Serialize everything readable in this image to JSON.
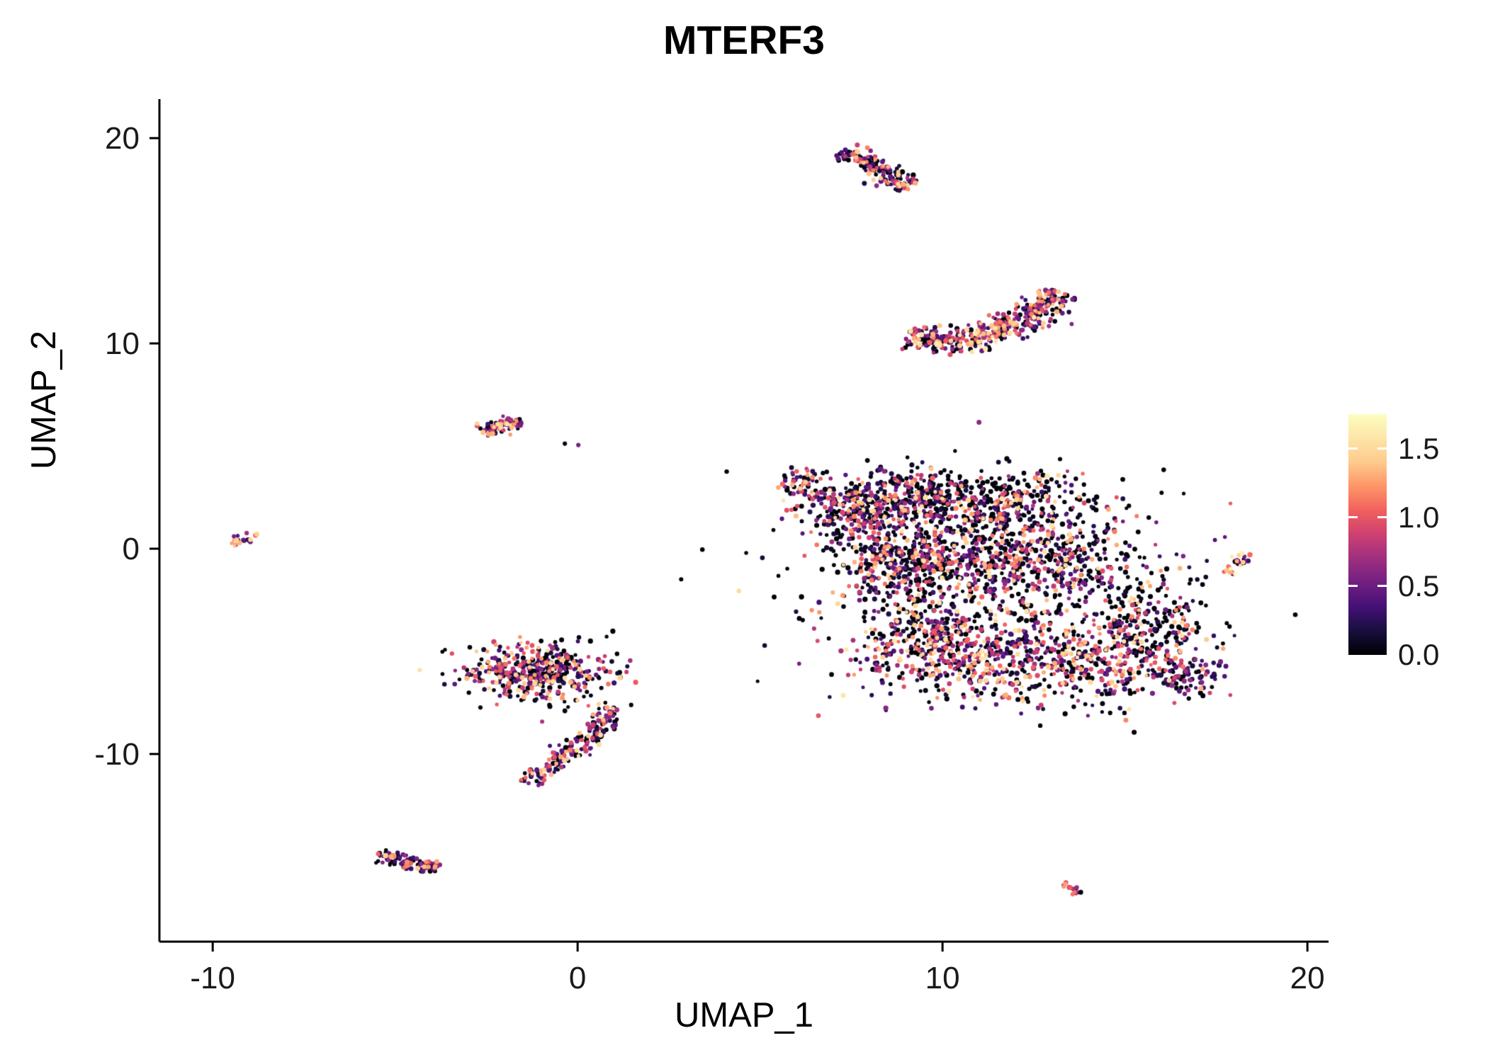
{
  "chart_data": {
    "type": "scatter",
    "title": "MTERF3",
    "xlabel": "UMAP_1",
    "ylabel": "UMAP_2",
    "xlim": [
      -11.46,
      20.58
    ],
    "ylim": [
      -19.14,
      21.9
    ],
    "x_ticks": [
      -10,
      0,
      10,
      20
    ],
    "y_ticks": [
      -10,
      0,
      10,
      20
    ],
    "grid": false,
    "background": "#ffffff",
    "axis_color": "#000000",
    "tick_text_color": "#1a1a1a",
    "legend": {
      "position": "right",
      "min": 0,
      "max": 1.75,
      "ticks": [
        0,
        0.5,
        1.0,
        1.5
      ],
      "tick_labels": [
        "0.0",
        "0.5",
        "1.0",
        "1.5"
      ]
    },
    "colormap": {
      "name": "magma",
      "stops": [
        [
          0.0,
          "#000004"
        ],
        [
          0.1,
          "#180f3e"
        ],
        [
          0.2,
          "#451077"
        ],
        [
          0.3,
          "#721f81"
        ],
        [
          0.4,
          "#9f2f7f"
        ],
        [
          0.5,
          "#cd4071"
        ],
        [
          0.6,
          "#f1605d"
        ],
        [
          0.7,
          "#fd9567"
        ],
        [
          0.8,
          "#feca8d"
        ],
        [
          0.9,
          "#fde5a7"
        ],
        [
          1.0,
          "#fcfdbf"
        ]
      ]
    },
    "clusters": [
      {
        "name": "top-strip",
        "shape": "strip",
        "seed": 11,
        "count": 150,
        "width": 0.21,
        "path": [
          [
            7.25,
            19.4
          ],
          [
            7.7,
            19.05
          ],
          [
            8.2,
            18.6
          ],
          [
            8.7,
            18.05
          ],
          [
            9.05,
            17.6
          ]
        ],
        "expr": {
          "p0": 0.32,
          "base": 0.1,
          "span": 1.35,
          "gamma": 1.6
        }
      },
      {
        "name": "top-strip-hot-tip",
        "shape": "strip",
        "seed": 12,
        "count": 12,
        "width": 0.1,
        "path": [
          [
            8.85,
            17.85
          ],
          [
            9.1,
            17.55
          ]
        ],
        "expr": {
          "p0": 0,
          "base": 0.9,
          "span": 0.8,
          "gamma": 1
        }
      },
      {
        "name": "upper-crescent",
        "shape": "strip",
        "seed": 13,
        "count": 430,
        "width": 0.3,
        "path": [
          [
            9.0,
            10.35
          ],
          [
            9.7,
            10.12
          ],
          [
            10.5,
            10.15
          ],
          [
            11.3,
            10.5
          ],
          [
            12.1,
            11.0
          ],
          [
            12.75,
            11.7
          ],
          [
            13.15,
            12.55
          ]
        ],
        "expr": {
          "p0": 0.25,
          "base": 0.18,
          "span": 1.45,
          "gamma": 1.25
        }
      },
      {
        "name": "left-small-strip",
        "shape": "strip",
        "seed": 14,
        "count": 75,
        "width": 0.15,
        "path": [
          [
            -2.62,
            5.72
          ],
          [
            -2.1,
            6.0
          ],
          [
            -1.55,
            6.18
          ]
        ],
        "expr": {
          "p0": 0.25,
          "base": 0.2,
          "span": 1.4,
          "gamma": 1.2
        }
      },
      {
        "name": "left-singles",
        "shape": "points",
        "seed": 15,
        "points": [
          [
            -0.35,
            5.12,
            0.05
          ],
          [
            0.02,
            5.05,
            0.55
          ]
        ]
      },
      {
        "name": "far-left-dot",
        "shape": "blob",
        "seed": 16,
        "count": 20,
        "center": [
          -9.15,
          0.45
        ],
        "sx": 0.2,
        "sy": 0.14,
        "rot": 25,
        "expr": {
          "p0": 0.25,
          "base": 0.3,
          "span": 1.3,
          "gamma": 1.1
        }
      },
      {
        "name": "mid-left-blob",
        "shape": "blob",
        "seed": 17,
        "count": 430,
        "center": [
          -1.05,
          -5.95
        ],
        "sx": 1.05,
        "sy": 0.72,
        "rot": 0,
        "expr": {
          "p0": 0.3,
          "base": 0.12,
          "span": 1.45,
          "gamma": 1.5
        }
      },
      {
        "name": "mid-left-tail",
        "shape": "strip",
        "seed": 18,
        "count": 170,
        "width": 0.22,
        "path": [
          [
            0.95,
            -7.7
          ],
          [
            0.45,
            -8.9
          ],
          [
            -0.3,
            -10.1
          ],
          [
            -1.1,
            -11.0
          ],
          [
            -1.55,
            -11.35
          ]
        ],
        "expr": {
          "p0": 0.28,
          "base": 0.15,
          "span": 1.4,
          "gamma": 1.4
        }
      },
      {
        "name": "right-small-strip",
        "shape": "strip",
        "seed": 19,
        "count": 30,
        "width": 0.11,
        "path": [
          [
            17.85,
            -1.2
          ],
          [
            18.1,
            -0.75
          ],
          [
            18.3,
            -0.2
          ]
        ],
        "expr": {
          "p0": 0.2,
          "base": 0.3,
          "span": 1.45,
          "gamma": 1.0
        }
      },
      {
        "name": "bottom-left-chevron",
        "shape": "strip",
        "seed": 20,
        "count": 95,
        "width": 0.16,
        "path": [
          [
            -5.5,
            -14.95
          ],
          [
            -5.0,
            -15.1
          ],
          [
            -4.5,
            -15.35
          ],
          [
            -4.15,
            -15.6
          ],
          [
            -3.75,
            -15.45
          ]
        ],
        "expr": {
          "p0": 0.3,
          "base": 0.15,
          "span": 1.35,
          "gamma": 1.4
        }
      },
      {
        "name": "bottom-right-dot",
        "shape": "strip",
        "seed": 21,
        "count": 15,
        "width": 0.09,
        "path": [
          [
            13.3,
            -16.3
          ],
          [
            13.8,
            -16.75
          ]
        ],
        "expr": {
          "p0": 0.15,
          "base": 0.4,
          "span": 1.3,
          "gamma": 1.0
        }
      },
      {
        "name": "main-tip-topleft",
        "shape": "blob",
        "seed": 30,
        "count": 45,
        "center": [
          6.1,
          3.3
        ],
        "sx": 0.3,
        "sy": 0.28,
        "rot": 0,
        "expr": {
          "p0": 0.3,
          "base": 0.15,
          "span": 1.3,
          "gamma": 1.5
        }
      },
      {
        "name": "main-upper-left",
        "shape": "blob",
        "seed": 31,
        "count": 270,
        "center": [
          7.6,
          2.0
        ],
        "sx": 0.85,
        "sy": 0.8,
        "rot": 0,
        "expr": {
          "p0": 0.38,
          "base": 0.1,
          "span": 1.5,
          "gamma": 1.7
        }
      },
      {
        "name": "main-top",
        "shape": "blob",
        "seed": 32,
        "count": 260,
        "center": [
          9.3,
          2.4
        ],
        "sx": 0.9,
        "sy": 0.75,
        "rot": 0,
        "expr": {
          "p0": 0.4,
          "base": 0.1,
          "span": 1.5,
          "gamma": 1.7
        }
      },
      {
        "name": "main-top-right",
        "shape": "blob",
        "seed": 33,
        "count": 300,
        "center": [
          11.6,
          2.2
        ],
        "sx": 1.3,
        "sy": 0.8,
        "rot": 0,
        "expr": {
          "p0": 0.45,
          "base": 0.1,
          "span": 1.5,
          "gamma": 1.8
        }
      },
      {
        "name": "main-left",
        "shape": "blob",
        "seed": 34,
        "count": 300,
        "center": [
          8.6,
          -0.6
        ],
        "sx": 1.0,
        "sy": 1.1,
        "rot": 0,
        "expr": {
          "p0": 0.38,
          "base": 0.1,
          "span": 1.5,
          "gamma": 1.6
        }
      },
      {
        "name": "main-center",
        "shape": "blob",
        "seed": 35,
        "count": 340,
        "center": [
          10.8,
          -0.8
        ],
        "sx": 1.3,
        "sy": 1.2,
        "rot": 0,
        "expr": {
          "p0": 0.42,
          "base": 0.1,
          "span": 1.5,
          "gamma": 1.7
        }
      },
      {
        "name": "main-right",
        "shape": "blob",
        "seed": 36,
        "count": 280,
        "center": [
          13.2,
          -0.6
        ],
        "sx": 1.1,
        "sy": 1.2,
        "rot": 0,
        "expr": {
          "p0": 0.42,
          "base": 0.1,
          "span": 1.5,
          "gamma": 1.7
        }
      },
      {
        "name": "main-lower-left",
        "shape": "blob",
        "seed": 37,
        "count": 330,
        "center": [
          9.8,
          -4.6
        ],
        "sx": 1.2,
        "sy": 1.1,
        "rot": 0,
        "expr": {
          "p0": 0.3,
          "base": 0.15,
          "span": 1.45,
          "gamma": 1.4
        }
      },
      {
        "name": "main-lower-mid",
        "shape": "blob",
        "seed": 38,
        "count": 330,
        "center": [
          12.0,
          -5.6
        ],
        "sx": 1.3,
        "sy": 1.0,
        "rot": 0,
        "expr": {
          "p0": 0.3,
          "base": 0.15,
          "span": 1.45,
          "gamma": 1.4
        }
      },
      {
        "name": "main-lower-right",
        "shape": "blob",
        "seed": 39,
        "count": 260,
        "center": [
          14.6,
          -5.3
        ],
        "sx": 1.2,
        "sy": 1.0,
        "rot": 0,
        "expr": {
          "p0": 0.33,
          "base": 0.12,
          "span": 1.45,
          "gamma": 1.5
        }
      },
      {
        "name": "main-right-lobe",
        "shape": "blob",
        "seed": 40,
        "count": 180,
        "center": [
          15.8,
          -3.4
        ],
        "sx": 0.9,
        "sy": 1.2,
        "rot": 0,
        "expr": {
          "p0": 0.45,
          "base": 0.1,
          "span": 1.5,
          "gamma": 1.8
        }
      },
      {
        "name": "main-right-tip",
        "shape": "blob",
        "seed": 41,
        "count": 80,
        "center": [
          16.6,
          -6.2
        ],
        "sx": 0.55,
        "sy": 0.5,
        "rot": 0,
        "expr": {
          "p0": 0.3,
          "base": 0.15,
          "span": 1.4,
          "gamma": 1.4
        }
      },
      {
        "name": "main-sparse-fill",
        "shape": "blob",
        "seed": 42,
        "count": 300,
        "center": [
          11.3,
          -1.6
        ],
        "sx": 2.9,
        "sy": 2.7,
        "rot": 0,
        "expr": {
          "p0": 0.5,
          "base": 0.1,
          "span": 1.5,
          "gamma": 1.8
        }
      }
    ]
  }
}
